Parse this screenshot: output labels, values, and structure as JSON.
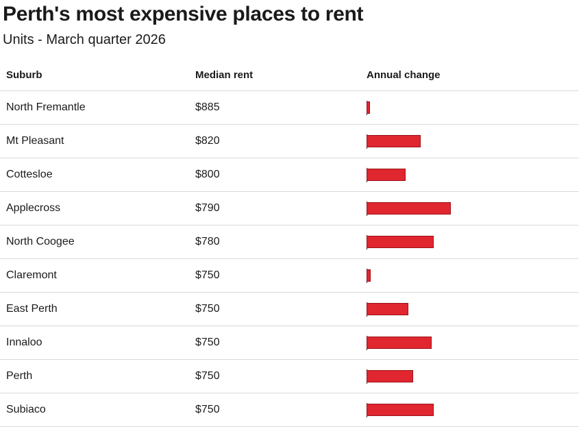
{
  "title": "Perth's most expensive places to rent",
  "subtitle": "Units - March quarter 2026",
  "headers": {
    "suburb": "Suburb",
    "rent": "Median rent",
    "change": "Annual change"
  },
  "colors": {
    "bar": "#e0262f",
    "bar_border": "#9c1219"
  },
  "chart_data": {
    "type": "table",
    "title": "Perth's most expensive places to rent",
    "subtitle": "Units - March quarter 2026",
    "columns": [
      "Suburb",
      "Median rent",
      "Annual change"
    ],
    "rows": [
      {
        "suburb": "North Fremantle",
        "rent": "$885",
        "change": 1
      },
      {
        "suburb": "Mt Pleasant",
        "rent": "$820",
        "change": 16
      },
      {
        "suburb": "Cottesloe",
        "rent": "$800",
        "change": 11.5
      },
      {
        "suburb": "Applecross",
        "rent": "$790",
        "change": 25
      },
      {
        "suburb": "North Coogee",
        "rent": "$780",
        "change": 20
      },
      {
        "suburb": "Claremont",
        "rent": "$750",
        "change": 1.2
      },
      {
        "suburb": "East Perth",
        "rent": "$750",
        "change": 12.3
      },
      {
        "suburb": "Innaloo",
        "rent": "$750",
        "change": 19.3
      },
      {
        "suburb": "Perth",
        "rent": "$750",
        "change": 13.8
      },
      {
        "suburb": "Subiaco",
        "rent": "$750",
        "change": 20
      }
    ]
  }
}
